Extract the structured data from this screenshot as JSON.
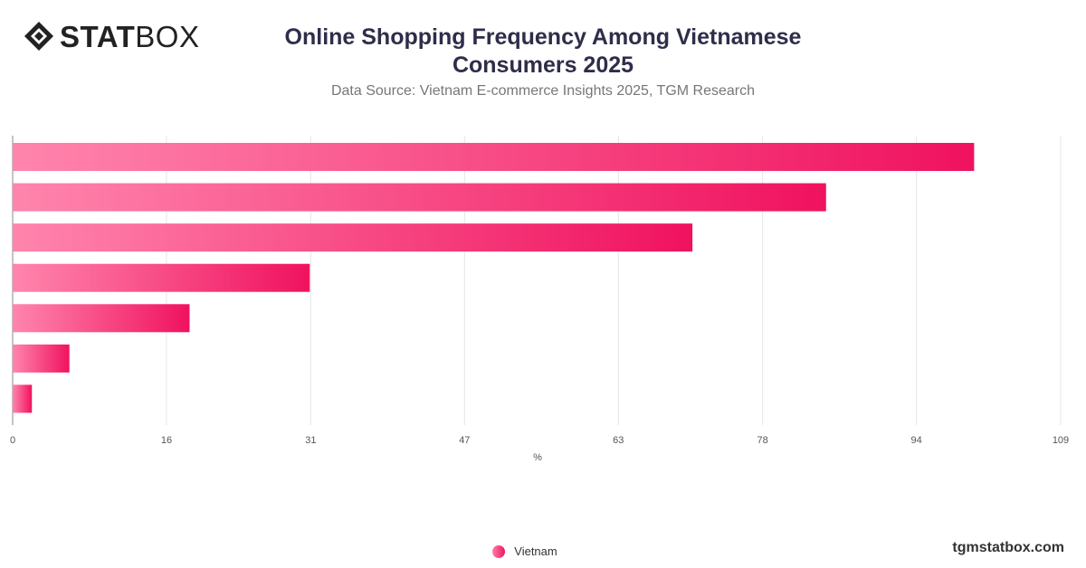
{
  "brand": {
    "logo_bold": "STAT",
    "logo_light": "BOX",
    "site": "tgmstatbox.com"
  },
  "header": {
    "title": "Online Shopping Frequency Among Vietnamese Consumers 2025",
    "subtitle": "Data Source: Vietnam E-commerce Insights 2025, TGM Research"
  },
  "colors": {
    "bar_start": "#ff85ad",
    "bar_end": "#f0125f",
    "grid": "#e6e6e6",
    "axis_text": "#555555"
  },
  "chart_data": {
    "type": "bar",
    "orientation": "horizontal",
    "categories": [
      "",
      "",
      "",
      "",
      "",
      "",
      ""
    ],
    "series": [
      {
        "name": "Vietnam",
        "values": [
          100,
          84.6,
          70.7,
          30.9,
          18.4,
          5.9,
          2
        ]
      }
    ],
    "xlabel": "%",
    "ylabel": "",
    "xlim": [
      0,
      109
    ],
    "xticks": [
      0,
      16,
      31,
      47,
      63,
      78,
      94,
      109
    ],
    "grid": true,
    "legend_position": "bottom"
  }
}
